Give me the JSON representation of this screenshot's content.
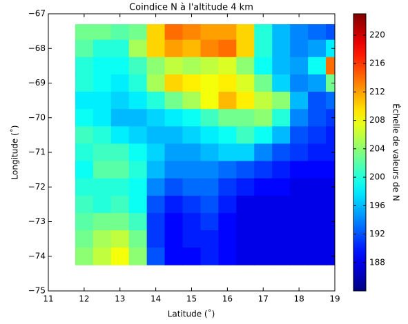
{
  "chart_data": {
    "type": "heatmap",
    "title": "Coindice N à l'altitude 4 km",
    "x_label": "Latitude (˚)",
    "y_label": "Longitude (˚)",
    "colorbar_label": "Échelle de valeurs de N",
    "colormap": "jet",
    "clim": [
      184,
      223
    ],
    "colorbar_ticks": [
      188,
      192,
      196,
      200,
      204,
      208,
      212,
      216,
      220
    ],
    "xlim": [
      11,
      19
    ],
    "ylim": [
      -75,
      -67
    ],
    "xticks": [
      11,
      12,
      13,
      14,
      15,
      16,
      17,
      18,
      19
    ],
    "yticks": [
      {
        "value": -75,
        "label": "−75"
      },
      {
        "value": -74,
        "label": "−74"
      },
      {
        "value": -73,
        "label": "−73"
      },
      {
        "value": -72,
        "label": "−72"
      },
      {
        "value": -71,
        "label": "−71"
      },
      {
        "value": -70,
        "label": "−70"
      },
      {
        "value": -69,
        "label": "−69"
      },
      {
        "value": -68,
        "label": "−68"
      },
      {
        "value": -67,
        "label": "−67"
      }
    ],
    "xbins": [
      11.75,
      12.25,
      12.75,
      13.25,
      13.75,
      14.25,
      14.75,
      15.25,
      15.75,
      16.25,
      16.75,
      17.25,
      17.75,
      18.25,
      18.75,
      19
    ],
    "ybins": [
      -67.3,
      -67.75,
      -68.25,
      -68.75,
      -69.25,
      -69.75,
      -70.25,
      -70.75,
      -71.25,
      -71.75,
      -72.25,
      -72.75,
      -73.25,
      -73.75,
      -74.25
    ],
    "values": [
      [
        203,
        203,
        202,
        203,
        210,
        214,
        213,
        212,
        212,
        210,
        200,
        196,
        194,
        193,
        192
      ],
      [
        202,
        200,
        200,
        205,
        210,
        212,
        211,
        213,
        214,
        210,
        200,
        196,
        194,
        195,
        198
      ],
      [
        200,
        199,
        199,
        201,
        204,
        206,
        205,
        206,
        207,
        204,
        199,
        196,
        195,
        199,
        214
      ],
      [
        200,
        199,
        198,
        200,
        205,
        210,
        209,
        208,
        209,
        207,
        203,
        197,
        194,
        195,
        203
      ],
      [
        198,
        198,
        197,
        198,
        200,
        203,
        205,
        208,
        211,
        209,
        206,
        204,
        196,
        192,
        193
      ],
      [
        199,
        198,
        196,
        196,
        197,
        198,
        199,
        201,
        203,
        203,
        204,
        200,
        194,
        192,
        191
      ],
      [
        201,
        200,
        198,
        197,
        196,
        196,
        197,
        198,
        199,
        201,
        199,
        196,
        192,
        191,
        190
      ],
      [
        200,
        201,
        201,
        199,
        197,
        195,
        195,
        196,
        197,
        197,
        194,
        192,
        191,
        190,
        190
      ],
      [
        199,
        202,
        202,
        200,
        196,
        194,
        194,
        194,
        193,
        192,
        191,
        190,
        189,
        189,
        189
      ],
      [
        200,
        200,
        200,
        199,
        194,
        192,
        193,
        193,
        191,
        190,
        189,
        189,
        188,
        188,
        188
      ],
      [
        201,
        200,
        201,
        199,
        192,
        190,
        191,
        192,
        190,
        188,
        188,
        188,
        188,
        188,
        188
      ],
      [
        202,
        203,
        203,
        201,
        191,
        189,
        190,
        191,
        189,
        188,
        188,
        188,
        188,
        188,
        188
      ],
      [
        203,
        205,
        206,
        203,
        191,
        189,
        190,
        190,
        189,
        188,
        188,
        188,
        188,
        188,
        188
      ],
      [
        204,
        206,
        208,
        204,
        192,
        189,
        189,
        190,
        189,
        188,
        188,
        188,
        188,
        188,
        188
      ]
    ]
  }
}
